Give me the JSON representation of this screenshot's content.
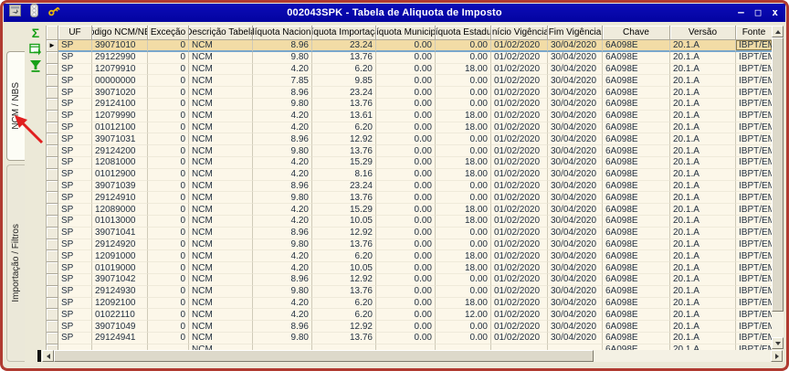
{
  "window": {
    "title": "002043SPK - Tabela de Aliquota de Imposto",
    "controls": {
      "minimize": "–",
      "maximize": "□",
      "close": "x"
    }
  },
  "sidebar": {
    "tabs": [
      {
        "label": "NCM / NBS",
        "active": true
      },
      {
        "label": "Importação / Filtros",
        "active": false
      }
    ]
  },
  "toolbar": {
    "sum_glyph": "Σ",
    "icons": [
      "sum-icon",
      "export-grid-icon",
      "filter-icon"
    ]
  },
  "grid": {
    "headers": [
      "UF",
      "Código NCM/NBS",
      "Exceção",
      "Descrição Tabela",
      "Alíquota Nacional",
      "Alíquota Importação",
      "Alíquota Municipal",
      "Alíquota Estadual",
      "Início Vigência",
      "Fim Vigência",
      "Chave",
      "Versão",
      "Fonte"
    ],
    "selected_index": 0,
    "row_marker": "►",
    "rows": [
      [
        "SP",
        "39071010",
        "0",
        "NCM",
        "8.96",
        "23.24",
        "0.00",
        "0.00",
        "01/02/2020",
        "30/04/2020",
        "6A098E",
        "20.1.A",
        "IBPT/EMP"
      ],
      [
        "SP",
        "29122990",
        "0",
        "NCM",
        "9.80",
        "13.76",
        "0.00",
        "0.00",
        "01/02/2020",
        "30/04/2020",
        "6A098E",
        "20.1.A",
        "IBPT/EMP"
      ],
      [
        "SP",
        "12079910",
        "0",
        "NCM",
        "4.20",
        "6.20",
        "0.00",
        "18.00",
        "01/02/2020",
        "30/04/2020",
        "6A098E",
        "20.1.A",
        "IBPT/EMP"
      ],
      [
        "SP",
        "00000000",
        "0",
        "NCM",
        "7.85",
        "9.85",
        "0.00",
        "0.00",
        "01/02/2020",
        "30/04/2020",
        "6A098E",
        "20.1.A",
        "IBPT/EMP"
      ],
      [
        "SP",
        "39071020",
        "0",
        "NCM",
        "8.96",
        "23.24",
        "0.00",
        "0.00",
        "01/02/2020",
        "30/04/2020",
        "6A098E",
        "20.1.A",
        "IBPT/EMP"
      ],
      [
        "SP",
        "29124100",
        "0",
        "NCM",
        "9.80",
        "13.76",
        "0.00",
        "0.00",
        "01/02/2020",
        "30/04/2020",
        "6A098E",
        "20.1.A",
        "IBPT/EMP"
      ],
      [
        "SP",
        "12079990",
        "0",
        "NCM",
        "4.20",
        "13.61",
        "0.00",
        "18.00",
        "01/02/2020",
        "30/04/2020",
        "6A098E",
        "20.1.A",
        "IBPT/EMP"
      ],
      [
        "SP",
        "01012100",
        "0",
        "NCM",
        "4.20",
        "6.20",
        "0.00",
        "18.00",
        "01/02/2020",
        "30/04/2020",
        "6A098E",
        "20.1.A",
        "IBPT/EMP"
      ],
      [
        "SP",
        "39071031",
        "0",
        "NCM",
        "8.96",
        "12.92",
        "0.00",
        "0.00",
        "01/02/2020",
        "30/04/2020",
        "6A098E",
        "20.1.A",
        "IBPT/EMP"
      ],
      [
        "SP",
        "29124200",
        "0",
        "NCM",
        "9.80",
        "13.76",
        "0.00",
        "0.00",
        "01/02/2020",
        "30/04/2020",
        "6A098E",
        "20.1.A",
        "IBPT/EMP"
      ],
      [
        "SP",
        "12081000",
        "0",
        "NCM",
        "4.20",
        "15.29",
        "0.00",
        "18.00",
        "01/02/2020",
        "30/04/2020",
        "6A098E",
        "20.1.A",
        "IBPT/EMP"
      ],
      [
        "SP",
        "01012900",
        "0",
        "NCM",
        "4.20",
        "8.16",
        "0.00",
        "18.00",
        "01/02/2020",
        "30/04/2020",
        "6A098E",
        "20.1.A",
        "IBPT/EMP"
      ],
      [
        "SP",
        "39071039",
        "0",
        "NCM",
        "8.96",
        "23.24",
        "0.00",
        "0.00",
        "01/02/2020",
        "30/04/2020",
        "6A098E",
        "20.1.A",
        "IBPT/EMP"
      ],
      [
        "SP",
        "29124910",
        "0",
        "NCM",
        "9.80",
        "13.76",
        "0.00",
        "0.00",
        "01/02/2020",
        "30/04/2020",
        "6A098E",
        "20.1.A",
        "IBPT/EMP"
      ],
      [
        "SP",
        "12089000",
        "0",
        "NCM",
        "4.20",
        "15.29",
        "0.00",
        "18.00",
        "01/02/2020",
        "30/04/2020",
        "6A098E",
        "20.1.A",
        "IBPT/EMP"
      ],
      [
        "SP",
        "01013000",
        "0",
        "NCM",
        "4.20",
        "10.05",
        "0.00",
        "18.00",
        "01/02/2020",
        "30/04/2020",
        "6A098E",
        "20.1.A",
        "IBPT/EMP"
      ],
      [
        "SP",
        "39071041",
        "0",
        "NCM",
        "8.96",
        "12.92",
        "0.00",
        "0.00",
        "01/02/2020",
        "30/04/2020",
        "6A098E",
        "20.1.A",
        "IBPT/EMP"
      ],
      [
        "SP",
        "29124920",
        "0",
        "NCM",
        "9.80",
        "13.76",
        "0.00",
        "0.00",
        "01/02/2020",
        "30/04/2020",
        "6A098E",
        "20.1.A",
        "IBPT/EMP"
      ],
      [
        "SP",
        "12091000",
        "0",
        "NCM",
        "4.20",
        "6.20",
        "0.00",
        "18.00",
        "01/02/2020",
        "30/04/2020",
        "6A098E",
        "20.1.A",
        "IBPT/EMP"
      ],
      [
        "SP",
        "01019000",
        "0",
        "NCM",
        "4.20",
        "10.05",
        "0.00",
        "18.00",
        "01/02/2020",
        "30/04/2020",
        "6A098E",
        "20.1.A",
        "IBPT/EMP"
      ],
      [
        "SP",
        "39071042",
        "0",
        "NCM",
        "8.96",
        "12.92",
        "0.00",
        "0.00",
        "01/02/2020",
        "30/04/2020",
        "6A098E",
        "20.1.A",
        "IBPT/EMP"
      ],
      [
        "SP",
        "29124930",
        "0",
        "NCM",
        "9.80",
        "13.76",
        "0.00",
        "0.00",
        "01/02/2020",
        "30/04/2020",
        "6A098E",
        "20.1.A",
        "IBPT/EMP"
      ],
      [
        "SP",
        "12092100",
        "0",
        "NCM",
        "4.20",
        "6.20",
        "0.00",
        "18.00",
        "01/02/2020",
        "30/04/2020",
        "6A098E",
        "20.1.A",
        "IBPT/EMP"
      ],
      [
        "SP",
        "01022110",
        "0",
        "NCM",
        "4.20",
        "6.20",
        "0.00",
        "12.00",
        "01/02/2020",
        "30/04/2020",
        "6A098E",
        "20.1.A",
        "IBPT/EMP"
      ],
      [
        "SP",
        "39071049",
        "0",
        "NCM",
        "8.96",
        "12.92",
        "0.00",
        "0.00",
        "01/02/2020",
        "30/04/2020",
        "6A098E",
        "20.1.A",
        "IBPT/EMP"
      ],
      [
        "SP",
        "29124941",
        "0",
        "NCM",
        "9.80",
        "13.76",
        "0.00",
        "0.00",
        "01/02/2020",
        "30/04/2020",
        "6A098E",
        "20.1.A",
        "IBPT/EMP"
      ]
    ],
    "partial_row": [
      "",
      "",
      "",
      "NCM",
      "",
      "",
      "",
      "",
      "",
      "",
      "6A098E",
      "20.1.A",
      "IBPT/EMP"
    ]
  },
  "colors": {
    "titlebar": "#0505AD",
    "screenshot_border": "#B03A30",
    "cell_background": "#FCF7E9",
    "selected_row": "#F2DCA6",
    "selection_line": "#7AA7CC",
    "toolbar_green": "#18A018",
    "annotation_arrow": "#E02020"
  }
}
